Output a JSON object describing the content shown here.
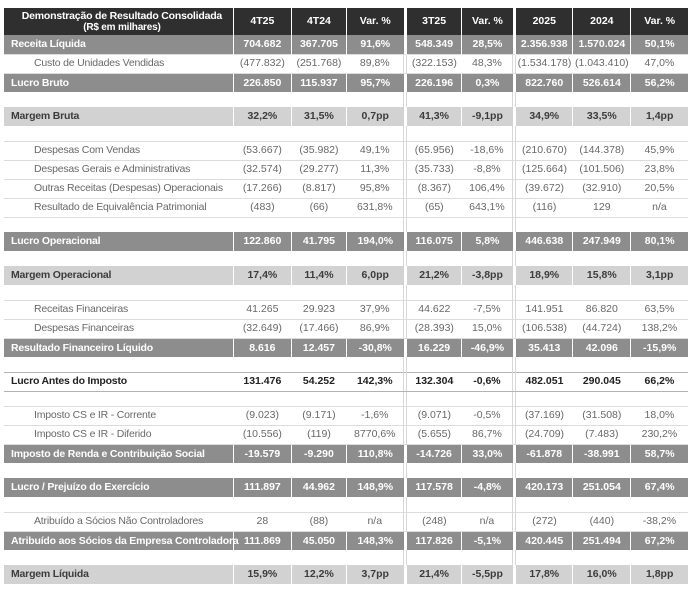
{
  "title": "Demonstração de Resultado Consolidada",
  "subtitle": "(R$ em milhares)",
  "columns": [
    "4T25",
    "4T24",
    "Var. %",
    "3T25",
    "Var. %",
    "2025",
    "2024",
    "Var. %"
  ],
  "colors": {
    "header_bg": "#2f2f2f",
    "header_text": "#ffffff",
    "band_dark_bg": "#8d8d8d",
    "band_dark_text": "#ffffff",
    "band_light_bg": "#d2d2d2",
    "band_light_text": "#3c3c3c",
    "detail_text": "#686868",
    "border_light": "#dcdcdc",
    "border_medium": "#b3b3b3",
    "border_gap": "#d8d8d8"
  },
  "rows": [
    {
      "type": "dark",
      "label": "Receita Líquida",
      "values": [
        "704.682",
        "367.705",
        "91,6%",
        "548.349",
        "28,5%",
        "2.356.938",
        "1.570.024",
        "50,1%"
      ]
    },
    {
      "type": "detail",
      "label": "Custo de Unidades Vendidas",
      "values": [
        "(477.832)",
        "(251.768)",
        "89,8%",
        "(322.153)",
        "48,3%",
        "(1.534.178)",
        "(1.043.410)",
        "47,0%"
      ]
    },
    {
      "type": "dark",
      "label": "Lucro Bruto",
      "values": [
        "226.850",
        "115.937",
        "95,7%",
        "226.196",
        "0,3%",
        "822.760",
        "526.614",
        "56,2%"
      ]
    },
    {
      "type": "spacer",
      "label": "",
      "values": [
        "",
        "",
        "",
        "",
        "",
        "",
        "",
        ""
      ]
    },
    {
      "type": "light",
      "label": "Margem Bruta",
      "values": [
        "32,2%",
        "31,5%",
        "0,7pp",
        "41,3%",
        "-9,1pp",
        "34,9%",
        "33,5%",
        "1,4pp"
      ]
    },
    {
      "type": "spacer",
      "label": "",
      "values": [
        "",
        "",
        "",
        "",
        "",
        "",
        "",
        ""
      ]
    },
    {
      "type": "detail",
      "label": "Despesas Com Vendas",
      "values": [
        "(53.667)",
        "(35.982)",
        "49,1%",
        "(65.956)",
        "-18,6%",
        "(210.670)",
        "(144.378)",
        "45,9%"
      ]
    },
    {
      "type": "detail",
      "label": "Despesas Gerais e Administrativas",
      "values": [
        "(32.574)",
        "(29.277)",
        "11,3%",
        "(35.733)",
        "-8,8%",
        "(125.664)",
        "(101.506)",
        "23,8%"
      ]
    },
    {
      "type": "detail",
      "label": "Outras Receitas (Despesas) Operacionais",
      "values": [
        "(17.266)",
        "(8.817)",
        "95,8%",
        "(8.367)",
        "106,4%",
        "(39.672)",
        "(32.910)",
        "20,5%"
      ]
    },
    {
      "type": "detail",
      "label": "Resultado de Equivalência Patrimonial",
      "values": [
        "(483)",
        "(66)",
        "631,8%",
        "(65)",
        "643,1%",
        "(116)",
        "129",
        "n/a"
      ]
    },
    {
      "type": "spacer",
      "label": "",
      "values": [
        "",
        "",
        "",
        "",
        "",
        "",
        "",
        ""
      ]
    },
    {
      "type": "dark",
      "label": "Lucro Operacional",
      "values": [
        "122.860",
        "41.795",
        "194,0%",
        "116.075",
        "5,8%",
        "446.638",
        "247.949",
        "80,1%"
      ]
    },
    {
      "type": "spacer",
      "label": "",
      "values": [
        "",
        "",
        "",
        "",
        "",
        "",
        "",
        ""
      ]
    },
    {
      "type": "light",
      "label": "Margem Operacional",
      "values": [
        "17,4%",
        "11,4%",
        "6,0pp",
        "21,2%",
        "-3,8pp",
        "18,9%",
        "15,8%",
        "3,1pp"
      ]
    },
    {
      "type": "spacer",
      "label": "",
      "values": [
        "",
        "",
        "",
        "",
        "",
        "",
        "",
        ""
      ]
    },
    {
      "type": "detail",
      "label": "Receitas Financeiras",
      "values": [
        "41.265",
        "29.923",
        "37,9%",
        "44.622",
        "-7,5%",
        "141.951",
        "86.820",
        "63,5%"
      ]
    },
    {
      "type": "detail",
      "label": "Despesas Financeiras",
      "values": [
        "(32.649)",
        "(17.466)",
        "86,9%",
        "(28.393)",
        "15,0%",
        "(106.538)",
        "(44.724)",
        "138,2%"
      ]
    },
    {
      "type": "dark",
      "label": "Resultado Financeiro Líquido",
      "values": [
        "8.616",
        "12.457",
        "-30,8%",
        "16.229",
        "-46,9%",
        "35.413",
        "42.096",
        "-15,9%"
      ]
    },
    {
      "type": "spacer",
      "label": "",
      "values": [
        "",
        "",
        "",
        "",
        "",
        "",
        "",
        ""
      ]
    },
    {
      "type": "boldwhite",
      "label": "Lucro Antes do Imposto",
      "values": [
        "131.476",
        "54.252",
        "142,3%",
        "132.304",
        "-0,6%",
        "482.051",
        "290.045",
        "66,2%"
      ]
    },
    {
      "type": "spacer",
      "label": "",
      "values": [
        "",
        "",
        "",
        "",
        "",
        "",
        "",
        ""
      ]
    },
    {
      "type": "detail",
      "label": "Imposto CS e IR - Corrente",
      "values": [
        "(9.023)",
        "(9.171)",
        "-1,6%",
        "(9.071)",
        "-0,5%",
        "(37.169)",
        "(31.508)",
        "18,0%"
      ]
    },
    {
      "type": "detail",
      "label": "Imposto CS e IR - Diferido",
      "values": [
        "(10.556)",
        "(119)",
        "8770,6%",
        "(5.655)",
        "86,7%",
        "(24.709)",
        "(7.483)",
        "230,2%"
      ]
    },
    {
      "type": "dark",
      "label": "Imposto de Renda e Contribuição Social",
      "values": [
        "-19.579",
        "-9.290",
        "110,8%",
        "-14.726",
        "33,0%",
        "-61.878",
        "-38.991",
        "58,7%"
      ]
    },
    {
      "type": "spacer",
      "label": "",
      "values": [
        "",
        "",
        "",
        "",
        "",
        "",
        "",
        ""
      ]
    },
    {
      "type": "dark",
      "label": "Lucro / Prejuízo do Exercício",
      "values": [
        "111.897",
        "44.962",
        "148,9%",
        "117.578",
        "-4,8%",
        "420.173",
        "251.054",
        "67,4%"
      ]
    },
    {
      "type": "spacer",
      "label": "",
      "values": [
        "",
        "",
        "",
        "",
        "",
        "",
        "",
        ""
      ]
    },
    {
      "type": "detail",
      "label": "Atribuído a Sócios Não Controladores",
      "values": [
        "28",
        "(88)",
        "n/a",
        "(248)",
        "n/a",
        "(272)",
        "(440)",
        "-38,2%"
      ]
    },
    {
      "type": "dark",
      "label": "Atribuído aos Sócios da Empresa Controladora",
      "values": [
        "111.869",
        "45.050",
        "148,3%",
        "117.826",
        "-5,1%",
        "420.445",
        "251.494",
        "67,2%"
      ]
    },
    {
      "type": "spacer",
      "label": "",
      "values": [
        "",
        "",
        "",
        "",
        "",
        "",
        "",
        ""
      ]
    },
    {
      "type": "light",
      "label": "Margem Líquida",
      "values": [
        "15,9%",
        "12,2%",
        "3,7pp",
        "21,4%",
        "-5,5pp",
        "17,8%",
        "16,0%",
        "1,8pp"
      ]
    }
  ]
}
